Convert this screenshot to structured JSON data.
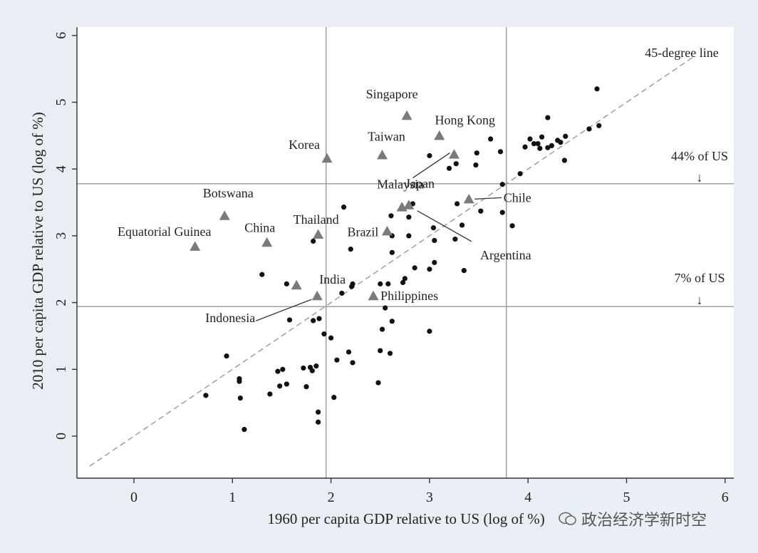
{
  "chart_data": {
    "type": "scatter",
    "xlabel": "1960 per capita GDP relative to US (log of %)",
    "ylabel": "2010 per capita GDP relative to US (log of %)",
    "xlim": [
      -0.5,
      6.1
    ],
    "ylim": [
      -0.6,
      6.1
    ],
    "x_ticks": [
      0,
      1,
      2,
      3,
      4,
      5,
      6
    ],
    "y_ticks": [
      0,
      1,
      2,
      3,
      4,
      5,
      6
    ],
    "reference_lines": {
      "vertical": [
        1.95,
        3.78
      ],
      "horizontal": [
        3.78,
        1.94
      ],
      "diagonal_label": "45-degree line",
      "threshold_labels": [
        "44% of US",
        "7% of US"
      ],
      "threshold_arrows": [
        "↓",
        "↓"
      ]
    },
    "highlighted": [
      {
        "name": "Singapore",
        "x": 2.77,
        "y": 4.8
      },
      {
        "name": "Hong Kong",
        "x": 3.1,
        "y": 4.5
      },
      {
        "name": "Taiwan",
        "x": 2.52,
        "y": 4.21
      },
      {
        "name": "Korea",
        "x": 1.96,
        "y": 4.16
      },
      {
        "name": "Japan",
        "x": 3.25,
        "y": 4.22
      },
      {
        "name": "Botswana",
        "x": 0.92,
        "y": 3.3
      },
      {
        "name": "Malaysia",
        "x": 2.72,
        "y": 3.43
      },
      {
        "name": "Argentina",
        "x": 2.79,
        "y": 3.46
      },
      {
        "name": "Chile",
        "x": 3.4,
        "y": 3.55
      },
      {
        "name": "Thailand",
        "x": 1.87,
        "y": 3.02
      },
      {
        "name": "Brazil",
        "x": 2.57,
        "y": 3.07
      },
      {
        "name": "Equatorial Guinea",
        "x": 0.62,
        "y": 2.84
      },
      {
        "name": "China",
        "x": 1.35,
        "y": 2.9
      },
      {
        "name": "India",
        "x": 1.65,
        "y": 2.26
      },
      {
        "name": "Indonesia",
        "x": 1.86,
        "y": 2.1
      },
      {
        "name": "Philippines",
        "x": 2.43,
        "y": 2.1
      }
    ],
    "other_points": [
      [
        4.7,
        5.2
      ],
      [
        4.2,
        4.77
      ],
      [
        4.72,
        4.65
      ],
      [
        4.62,
        4.6
      ],
      [
        3.62,
        4.45
      ],
      [
        4.02,
        4.45
      ],
      [
        4.14,
        4.48
      ],
      [
        4.38,
        4.49
      ],
      [
        4.1,
        4.38
      ],
      [
        4.06,
        4.38
      ],
      [
        3.97,
        4.33
      ],
      [
        4.12,
        4.31
      ],
      [
        4.2,
        4.32
      ],
      [
        4.3,
        4.43
      ],
      [
        4.33,
        4.4
      ],
      [
        4.24,
        4.35
      ],
      [
        3.72,
        4.26
      ],
      [
        3.48,
        4.24
      ],
      [
        3.0,
        4.2
      ],
      [
        3.27,
        4.08
      ],
      [
        3.47,
        4.06
      ],
      [
        3.2,
        4.01
      ],
      [
        4.37,
        4.13
      ],
      [
        3.92,
        3.93
      ],
      [
        3.74,
        3.77
      ],
      [
        2.13,
        3.43
      ],
      [
        2.83,
        3.48
      ],
      [
        3.28,
        3.48
      ],
      [
        3.52,
        3.37
      ],
      [
        3.74,
        3.35
      ],
      [
        2.61,
        3.3
      ],
      [
        2.79,
        3.28
      ],
      [
        3.33,
        3.16
      ],
      [
        3.84,
        3.15
      ],
      [
        3.04,
        3.12
      ],
      [
        2.79,
        3.0
      ],
      [
        3.05,
        2.93
      ],
      [
        3.26,
        2.95
      ],
      [
        1.82,
        2.92
      ],
      [
        2.62,
        3.0
      ],
      [
        2.2,
        2.8
      ],
      [
        2.62,
        2.75
      ],
      [
        3.05,
        2.6
      ],
      [
        3.35,
        2.48
      ],
      [
        2.85,
        2.52
      ],
      [
        3.0,
        2.5
      ],
      [
        1.3,
        2.42
      ],
      [
        2.75,
        2.36
      ],
      [
        2.73,
        2.3
      ],
      [
        1.55,
        2.28
      ],
      [
        2.22,
        2.28
      ],
      [
        2.5,
        2.28
      ],
      [
        2.21,
        2.24
      ],
      [
        2.58,
        2.28
      ],
      [
        2.11,
        2.14
      ],
      [
        2.55,
        1.92
      ],
      [
        1.58,
        1.74
      ],
      [
        1.88,
        1.76
      ],
      [
        1.82,
        1.73
      ],
      [
        2.62,
        1.72
      ],
      [
        1.93,
        1.53
      ],
      [
        2.0,
        1.47
      ],
      [
        2.52,
        1.6
      ],
      [
        3.0,
        1.57
      ],
      [
        2.18,
        1.26
      ],
      [
        2.5,
        1.28
      ],
      [
        2.06,
        1.14
      ],
      [
        2.6,
        1.24
      ],
      [
        2.22,
        1.1
      ],
      [
        0.94,
        1.2
      ],
      [
        1.07,
        0.86
      ],
      [
        1.07,
        0.82
      ],
      [
        1.46,
        0.97
      ],
      [
        1.51,
        1.0
      ],
      [
        1.72,
        1.02
      ],
      [
        1.79,
        1.03
      ],
      [
        1.85,
        1.05
      ],
      [
        1.81,
        0.98
      ],
      [
        1.55,
        0.78
      ],
      [
        1.48,
        0.75
      ],
      [
        1.75,
        0.74
      ],
      [
        2.48,
        0.8
      ],
      [
        0.73,
        0.61
      ],
      [
        1.08,
        0.57
      ],
      [
        1.38,
        0.63
      ],
      [
        2.03,
        0.58
      ],
      [
        1.87,
        0.36
      ],
      [
        1.87,
        0.21
      ],
      [
        1.12,
        0.1
      ]
    ]
  },
  "watermark": "政治经济学新时空"
}
